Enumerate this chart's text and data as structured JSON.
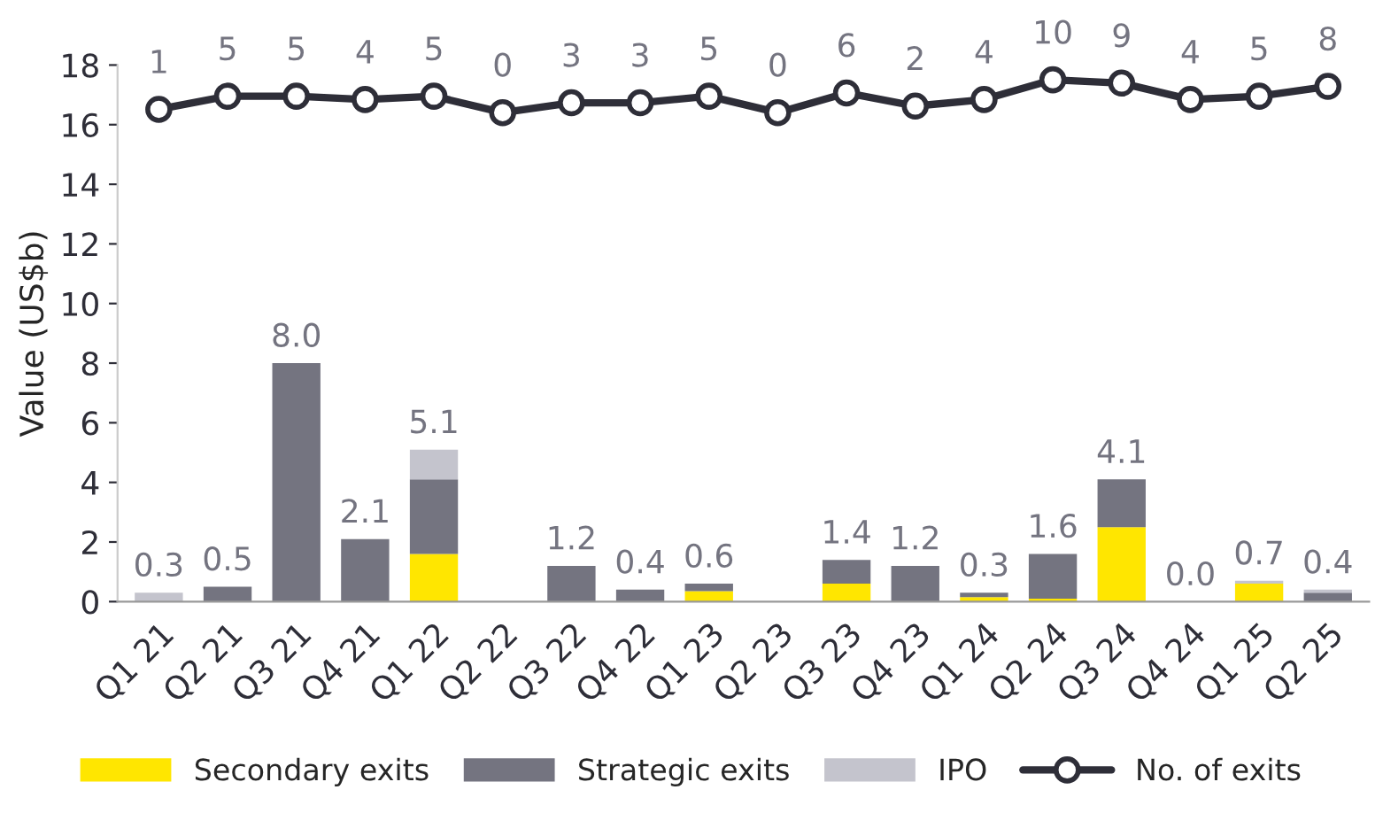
{
  "chart_data": {
    "type": "bar",
    "ylabel": "Value (US$b)",
    "stacked": true,
    "categories": [
      "Q1 21",
      "Q2 21",
      "Q3 21",
      "Q4 21",
      "Q1 22",
      "Q2 22",
      "Q3 22",
      "Q4 22",
      "Q1 23",
      "Q2 23",
      "Q3 23",
      "Q4 23",
      "Q1 24",
      "Q2 24",
      "Q3 24",
      "Q4 24",
      "Q1 25",
      "Q2 25"
    ],
    "series": [
      {
        "name": "Secondary exits",
        "color": "#ffe600",
        "values": [
          0,
          0,
          0,
          0,
          1.6,
          0,
          0,
          0,
          0.35,
          0,
          0.6,
          0,
          0.15,
          0.1,
          2.5,
          0,
          0.6,
          0
        ]
      },
      {
        "name": "Strategic exits",
        "color": "#747480",
        "values": [
          0,
          0.5,
          8.0,
          2.1,
          2.5,
          0,
          1.2,
          0.4,
          0.25,
          0,
          0.8,
          1.2,
          0.15,
          1.5,
          1.6,
          0,
          0,
          0.3
        ]
      },
      {
        "name": "IPO",
        "color": "#c4c4cd",
        "values": [
          0.3,
          0,
          0,
          0,
          1.0,
          0,
          0,
          0,
          0,
          0,
          0,
          0,
          0,
          0,
          0,
          0,
          0.1,
          0.1
        ]
      },
      {
        "name": "No. of exits",
        "type": "line",
        "axis": "y2",
        "color": "#2e2e38",
        "marker": "circle",
        "values": [
          1,
          5,
          5,
          4,
          5,
          0,
          3,
          3,
          5,
          0,
          6,
          2,
          4,
          10,
          9,
          4,
          5,
          8
        ],
        "value_labels": [
          "1",
          "5",
          "5",
          "4",
          "5",
          "0",
          "3",
          "3",
          "5",
          "0",
          "6",
          "2",
          "4",
          "10",
          "9",
          "4",
          "5",
          "8"
        ]
      }
    ],
    "totals": [
      "0.3",
      "0.5",
      "8.0",
      "2.1",
      "5.1",
      null,
      "1.2",
      "0.4",
      "0.6",
      null,
      "1.4",
      "1.2",
      "0.3",
      "1.6",
      "4.1",
      "0.0",
      "0.7",
      "0.4"
    ],
    "ylim": [
      0,
      18
    ],
    "yticks": [
      0,
      2,
      4,
      6,
      8,
      10,
      12,
      14,
      16,
      18
    ],
    "y2lim": [
      -149,
      14.5
    ],
    "grid": false,
    "legend": "bottom"
  }
}
